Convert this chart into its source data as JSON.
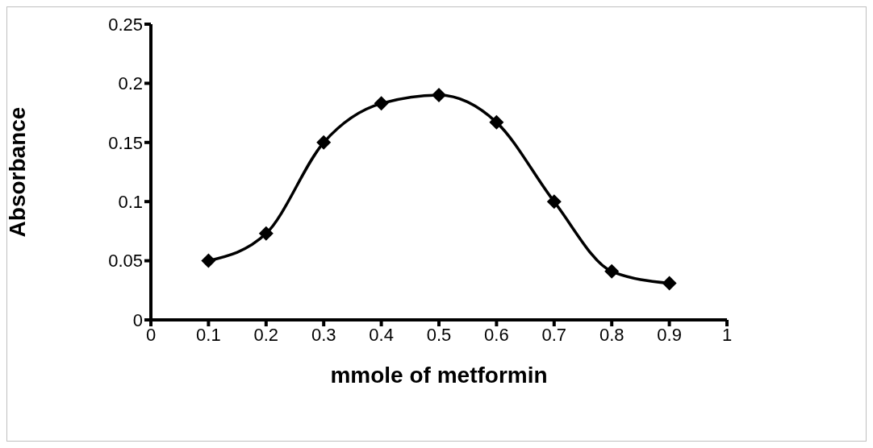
{
  "chart_data": {
    "type": "line",
    "xlabel": "mmole of metformin",
    "ylabel": "Absorbance",
    "x": [
      0.1,
      0.2,
      0.3,
      0.4,
      0.5,
      0.6,
      0.7,
      0.8,
      0.9
    ],
    "series": [
      {
        "color": "#000000",
        "values": [
          0.05,
          0.073,
          0.15,
          0.183,
          0.19,
          0.167,
          0.1,
          0.041,
          0.031
        ]
      }
    ],
    "xlim": [
      0,
      1
    ],
    "xticks": [
      0,
      0.1,
      0.2,
      0.3,
      0.4,
      0.5,
      0.6,
      0.7,
      0.8,
      0.9,
      1
    ],
    "ylim": [
      0,
      0.25
    ],
    "yticks": [
      0,
      0.05,
      0.1,
      0.15,
      0.2,
      0.25
    ],
    "grid": false,
    "marker": "diamond",
    "line_style": "solid"
  }
}
